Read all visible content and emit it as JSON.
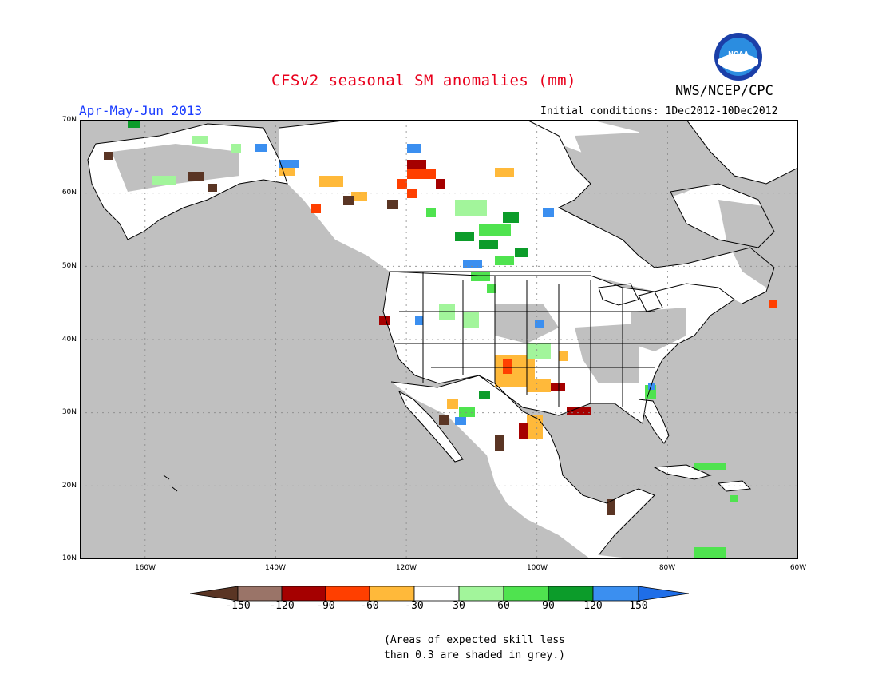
{
  "header": {
    "title": "CFSv2 seasonal SM anomalies (mm)",
    "agency": "NWS/NCEP/CPC",
    "period": "Apr-May-Jun 2013",
    "initial_conditions": "Initial conditions: 1Dec2012-10Dec2012",
    "logo_text": "NOAA"
  },
  "map": {
    "lat_labels": [
      "70N",
      "60N",
      "50N",
      "40N",
      "30N",
      "20N",
      "10N"
    ],
    "lon_labels": [
      "160W",
      "140W",
      "120W",
      "100W",
      "80W",
      "60W"
    ],
    "colors": {
      "ocean_grey": "#c0c0c0",
      "land_white": "#ffffff",
      "border": "#000000"
    }
  },
  "colorbar": {
    "labels": [
      "-150",
      "-120",
      "-90",
      "-60",
      "-30",
      "30",
      "60",
      "90",
      "120",
      "150"
    ],
    "colors": [
      "#5a3524",
      "#9a7468",
      "#a50000",
      "#ff3f00",
      "#ffb93a",
      "#ffffff",
      "#a2f59b",
      "#4fe34f",
      "#0c9c2a",
      "#3b8ff0",
      "#1f6ee8"
    ]
  },
  "note": {
    "line1": "(Areas of expected skill less",
    "line2": "than 0.3 are shaded in grey.)"
  }
}
